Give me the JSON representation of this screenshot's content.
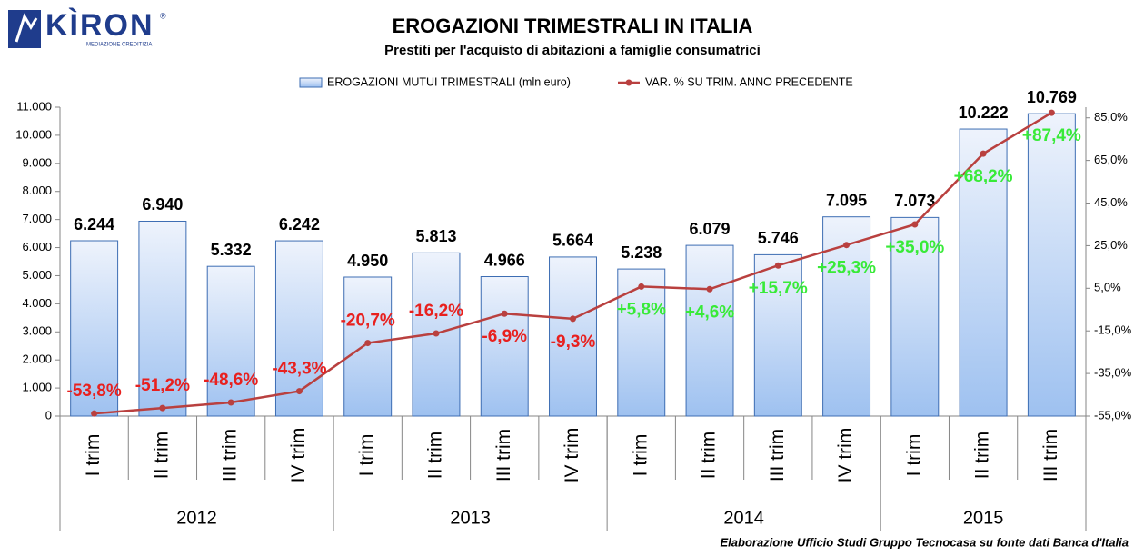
{
  "logo": {
    "name": "KÌRON",
    "mark": "®",
    "tagline": "MEDIAZIONE CREDITIZIA"
  },
  "chart_data": {
    "type": "bar",
    "title": "EROGAZIONI TRIMESTRALI IN ITALIA",
    "subtitle": "Prestiti per l'acquisto di abitazioni a famiglie consumatrici",
    "source": "Elaborazione Ufficio Studi Gruppo Tecnocasa su fonte dati Banca d'Italia",
    "categories": [
      "I trim",
      "II trim",
      "III trim",
      "IV trim",
      "I trim",
      "II trim",
      "III trim",
      "IV trim",
      "I trim",
      "II trim",
      "III trim",
      "IV trim",
      "I trim",
      "II trim",
      "III trim"
    ],
    "years": [
      "2012",
      "2012",
      "2012",
      "2012",
      "2013",
      "2013",
      "2013",
      "2013",
      "2014",
      "2014",
      "2014",
      "2014",
      "2015",
      "2015",
      "2015"
    ],
    "series": [
      {
        "name": "EROGAZIONI MUTUI TRIMESTRALI (mln euro)",
        "type": "bar",
        "color": "#9ec1f0",
        "values": [
          6244,
          6940,
          5332,
          6242,
          4950,
          5813,
          4966,
          5664,
          5238,
          6079,
          5746,
          7095,
          7073,
          10222,
          10769
        ],
        "value_labels": [
          "6.244",
          "6.940",
          "5.332",
          "6.242",
          "4.950",
          "5.813",
          "4.966",
          "5.664",
          "5.238",
          "6.079",
          "5.746",
          "7.095",
          "7.073",
          "10.222",
          "10.769"
        ]
      },
      {
        "name": "VAR. % SU TRIM. ANNO PRECEDENTE",
        "type": "line",
        "axis": "y2",
        "color": "#b9403f",
        "values": [
          -53.8,
          -51.2,
          -48.6,
          -43.3,
          -20.7,
          -16.2,
          -6.9,
          -9.3,
          5.8,
          4.6,
          15.7,
          25.3,
          35.0,
          68.2,
          87.4
        ],
        "value_labels": [
          "-53,8%",
          "-51,2%",
          "-48,6%",
          "-43,3%",
          "-20,7%",
          "-16,2%",
          "-6,9%",
          "-9,3%",
          "+5,8%",
          "+4,6%",
          "+15,7%",
          "+25,3%",
          "+35,0%",
          "+68,2%",
          "+87,4%"
        ]
      }
    ],
    "negative_label_color": "#e8201e",
    "positive_label_color": "#38ea38",
    "ylim": [
      0,
      11000
    ],
    "yticks": [
      {
        "value": 0,
        "label": "0"
      },
      {
        "value": 1000,
        "label": "1.000"
      },
      {
        "value": 2000,
        "label": "2.000"
      },
      {
        "value": 3000,
        "label": "3.000"
      },
      {
        "value": 4000,
        "label": "4.000"
      },
      {
        "value": 5000,
        "label": "5.000"
      },
      {
        "value": 6000,
        "label": "6.000"
      },
      {
        "value": 7000,
        "label": "7.000"
      },
      {
        "value": 8000,
        "label": "8.000"
      },
      {
        "value": 9000,
        "label": "9.000"
      },
      {
        "value": 10000,
        "label": "10.000"
      },
      {
        "value": 11000,
        "label": "11.000"
      }
    ],
    "y2lim": [
      -55,
      90
    ],
    "y2ticks": [
      {
        "value": -55,
        "label": "-55,0%"
      },
      {
        "value": -35,
        "label": "-35,0%"
      },
      {
        "value": -15,
        "label": "-15,0%"
      },
      {
        "value": 5,
        "label": "5,0%"
      },
      {
        "value": 25,
        "label": "25,0%"
      },
      {
        "value": 45,
        "label": "45,0%"
      },
      {
        "value": 65,
        "label": "65,0%"
      },
      {
        "value": 85,
        "label": "85,0%"
      }
    ],
    "grid": false
  }
}
